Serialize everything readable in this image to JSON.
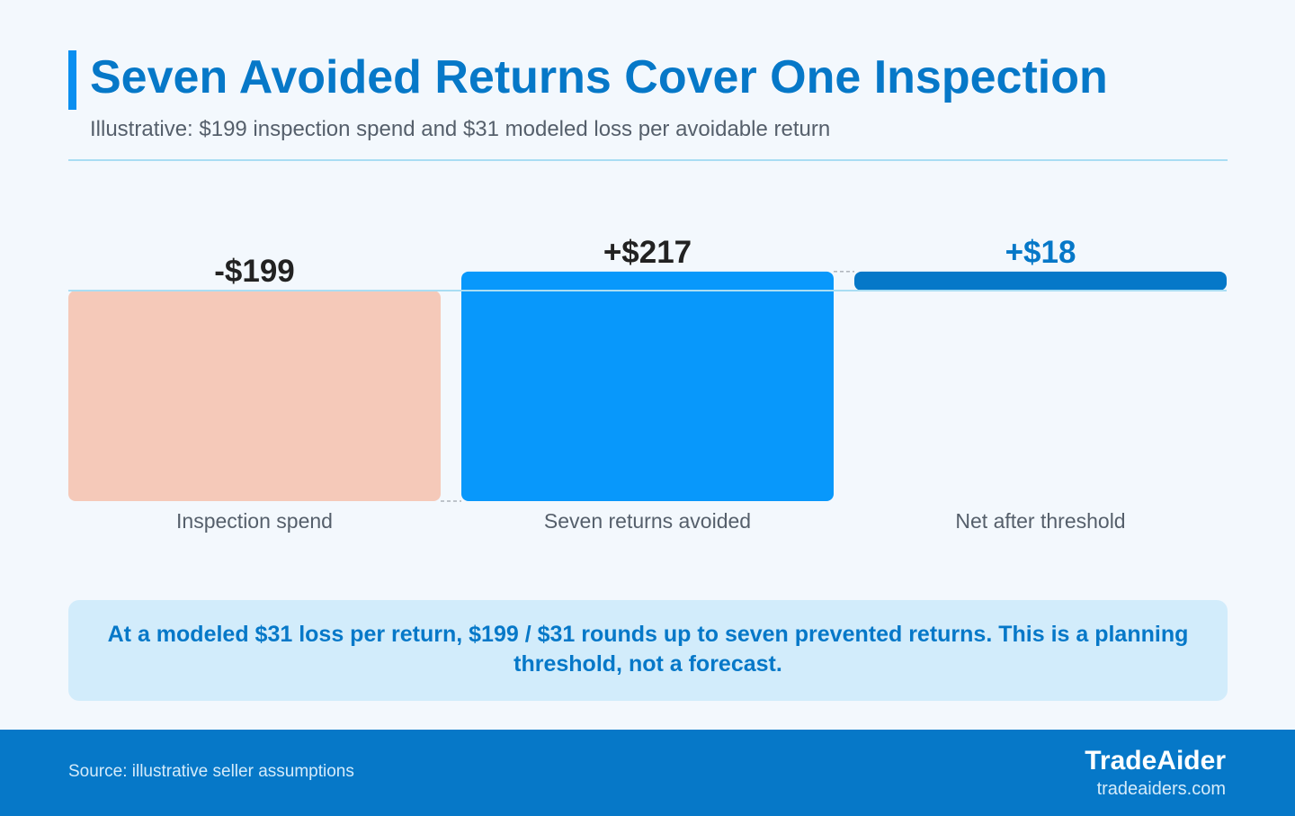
{
  "header": {
    "title": "Seven Avoided Returns Cover One Inspection",
    "subtitle": "Illustrative: $199 inspection spend and $31 modeled loss per avoidable return"
  },
  "chart_data": {
    "type": "bar",
    "subtype": "waterfall",
    "categories": [
      "Inspection spend",
      "Seven returns avoided",
      "Net after threshold"
    ],
    "values": [
      -199,
      217,
      18
    ],
    "value_labels": [
      "-$199",
      "+$217",
      "+$18"
    ],
    "bar_kinds": [
      "delta",
      "delta",
      "total"
    ],
    "colors": [
      "#f5c9b9",
      "#0898fb",
      "#0678c8"
    ],
    "label_colors": [
      "#222222",
      "#222222",
      "#0678c8"
    ],
    "baseline": 0,
    "ylim": [
      -199,
      18
    ],
    "grid": false,
    "legend": "none"
  },
  "callout": {
    "text": "At a modeled $31 loss per return, $199 / $31 rounds up to seven prevented returns. This is a planning threshold, not a forecast."
  },
  "footer": {
    "source": "Source: illustrative seller assumptions",
    "brand": "TradeAider",
    "url": "tradeaiders.com"
  }
}
